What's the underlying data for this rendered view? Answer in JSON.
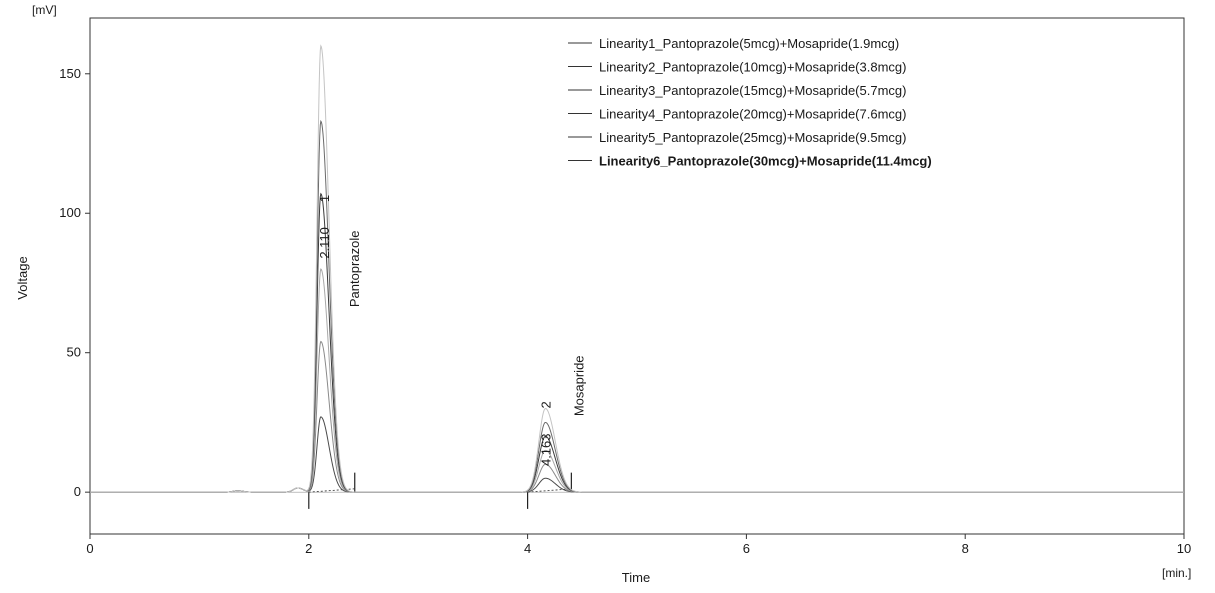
{
  "chart_data": {
    "type": "line",
    "xlabel": "Time",
    "ylabel": "Voltage",
    "x_unit": "[min.]",
    "y_unit": "[mV]",
    "xlim": [
      0,
      10
    ],
    "ylim": [
      -15,
      170
    ],
    "x_ticks": [
      0,
      2,
      4,
      6,
      8,
      10
    ],
    "y_ticks": [
      0,
      50,
      100,
      150
    ],
    "grid": false,
    "legend_position": "top-right",
    "series": [
      {
        "name": "Linearity1_Pantoprazole(5mcg)+Mosapride(1.9mcg)",
        "color": "#4a4a4a",
        "bold": false,
        "peak_heights": [
          27,
          5
        ]
      },
      {
        "name": "Linearity2_Pantoprazole(10mcg)+Mosapride(3.8mcg)",
        "color": "#8a8a8a",
        "bold": false,
        "peak_heights": [
          54,
          10
        ]
      },
      {
        "name": "Linearity3_Pantoprazole(15mcg)+Mosapride(5.7mcg)",
        "color": "#a8a8a8",
        "bold": false,
        "peak_heights": [
          80,
          15
        ]
      },
      {
        "name": "Linearity4_Pantoprazole(20mcg)+Mosapride(7.6mcg)",
        "color": "#3a3a3a",
        "bold": false,
        "peak_heights": [
          107,
          20
        ]
      },
      {
        "name": "Linearity5_Pantoprazole(25mcg)+Mosapride(9.5mcg)",
        "color": "#6a6a6a",
        "bold": false,
        "peak_heights": [
          133,
          25
        ]
      },
      {
        "name": "Linearity6_Pantoprazole(30mcg)+Mosapride(11.4mcg)",
        "color": "#c4c4c4",
        "bold": true,
        "peak_heights": [
          160,
          30
        ]
      }
    ],
    "peaks": [
      {
        "number": "1",
        "retention_time": "2.110",
        "compound": "Pantoprazole",
        "time": 2.11,
        "integration_start": 2.0,
        "integration_end": 2.42
      },
      {
        "number": "2",
        "retention_time": "4.163",
        "compound": "Mosapride",
        "time": 4.163,
        "integration_start": 4.0,
        "integration_end": 4.4
      }
    ],
    "minor_bumps": [
      {
        "time": 1.35,
        "height": 0.5
      },
      {
        "time": 1.9,
        "height": 1.5
      }
    ]
  }
}
